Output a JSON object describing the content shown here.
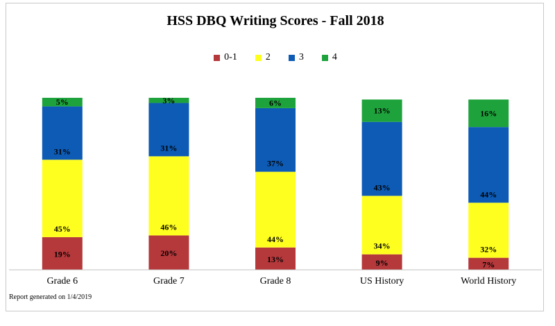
{
  "chart_data": {
    "type": "bar",
    "stacked": true,
    "title": "HSS DBQ Writing Scores - Fall 2018",
    "categories": [
      "Grade 6",
      "Grade 7",
      "Grade 8",
      "US History",
      "World History"
    ],
    "series": [
      {
        "name": "0-1",
        "color": "#b5383b",
        "values": [
          19,
          20,
          13,
          9,
          7
        ]
      },
      {
        "name": "2",
        "color": "#ffff1f",
        "values": [
          45,
          46,
          44,
          34,
          32
        ]
      },
      {
        "name": "3",
        "color": "#0d5bb5",
        "values": [
          31,
          31,
          37,
          43,
          44
        ]
      },
      {
        "name": "4",
        "color": "#1ea33c",
        "values": [
          5,
          3,
          6,
          13,
          16
        ]
      }
    ],
    "value_suffix": "%",
    "legend_position": "top",
    "grid": false,
    "ylim": [
      0,
      100
    ]
  },
  "footer": "Report  generated on 1/4/2019"
}
